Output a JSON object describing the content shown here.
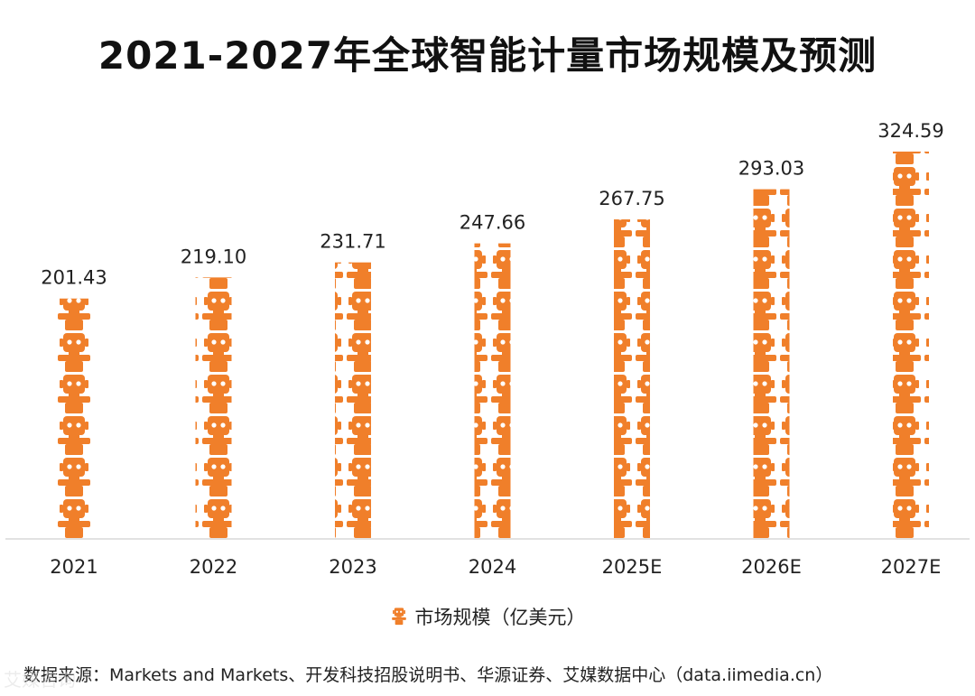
{
  "chart_data": {
    "type": "bar",
    "title": "2021-2027年全球智能计量市场规模及预测",
    "categories": [
      "2021",
      "2022",
      "2023",
      "2024",
      "2025E",
      "2026E",
      "2027E"
    ],
    "series": [
      {
        "name": "市场规模（亿美元）",
        "values": [
          201.43,
          219.1,
          231.71,
          247.66,
          267.75,
          293.03,
          324.59
        ]
      }
    ],
    "value_labels": [
      "201.43",
      "219.10",
      "231.71",
      "247.66",
      "267.75",
      "293.03",
      "324.59"
    ],
    "ylim": [
      0,
      330
    ],
    "xlabel": "",
    "ylabel": "",
    "legend_position": "bottom-center",
    "bar_color": "#F07F2A",
    "axis_color": "#D9D9D9"
  },
  "legend": {
    "label": "市场规模（亿美元）",
    "icon": "robot-icon"
  },
  "source": "数据来源：Markets and Markets、开发科技招股说明书、华源证券、艾媒数据中心（data.iimedia.cn）",
  "watermark": "艾媒咨询"
}
